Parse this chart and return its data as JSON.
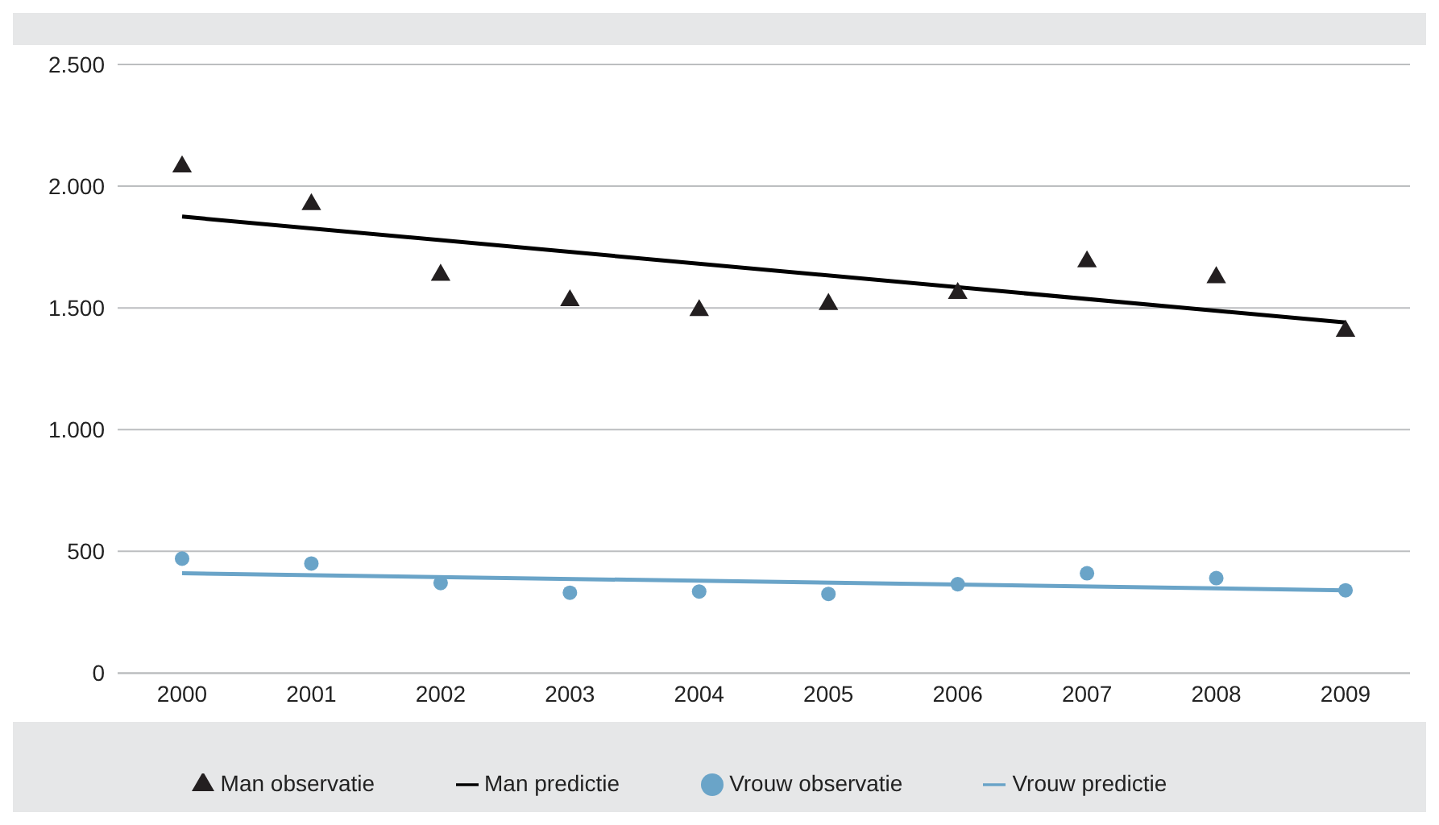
{
  "chart_data": {
    "type": "scatter",
    "categories": [
      "2000",
      "2001",
      "2002",
      "2003",
      "2004",
      "2005",
      "2006",
      "2007",
      "2008",
      "2009"
    ],
    "ylim": [
      0,
      2500
    ],
    "yticks": [
      {
        "value": 0,
        "label": "0"
      },
      {
        "value": 500,
        "label": "500"
      },
      {
        "value": 1000,
        "label": "1.000"
      },
      {
        "value": 1500,
        "label": "1.500"
      },
      {
        "value": 2000,
        "label": "2.000"
      },
      {
        "value": 2500,
        "label": "2.500"
      }
    ],
    "grid": "y",
    "legend": "bottom",
    "series": [
      {
        "name": "Man observatie",
        "marker": "triangle",
        "color": "#231f20",
        "values": [
          2080,
          1925,
          1635,
          1530,
          1490,
          1515,
          1560,
          1690,
          1625,
          1405
        ]
      },
      {
        "name": "Man predictie",
        "type": "line",
        "marker": "none",
        "color": "#000000",
        "values": [
          1875,
          null,
          null,
          null,
          null,
          null,
          null,
          null,
          null,
          1440
        ]
      },
      {
        "name": "Vrouw observatie",
        "marker": "circle",
        "color": "#6aa4c8",
        "values": [
          470,
          450,
          370,
          330,
          335,
          325,
          365,
          410,
          390,
          340
        ]
      },
      {
        "name": "Vrouw predictie",
        "type": "line",
        "marker": "none",
        "color": "#6aa4c8",
        "values": [
          410,
          null,
          null,
          null,
          null,
          null,
          null,
          null,
          null,
          340
        ]
      }
    ]
  }
}
